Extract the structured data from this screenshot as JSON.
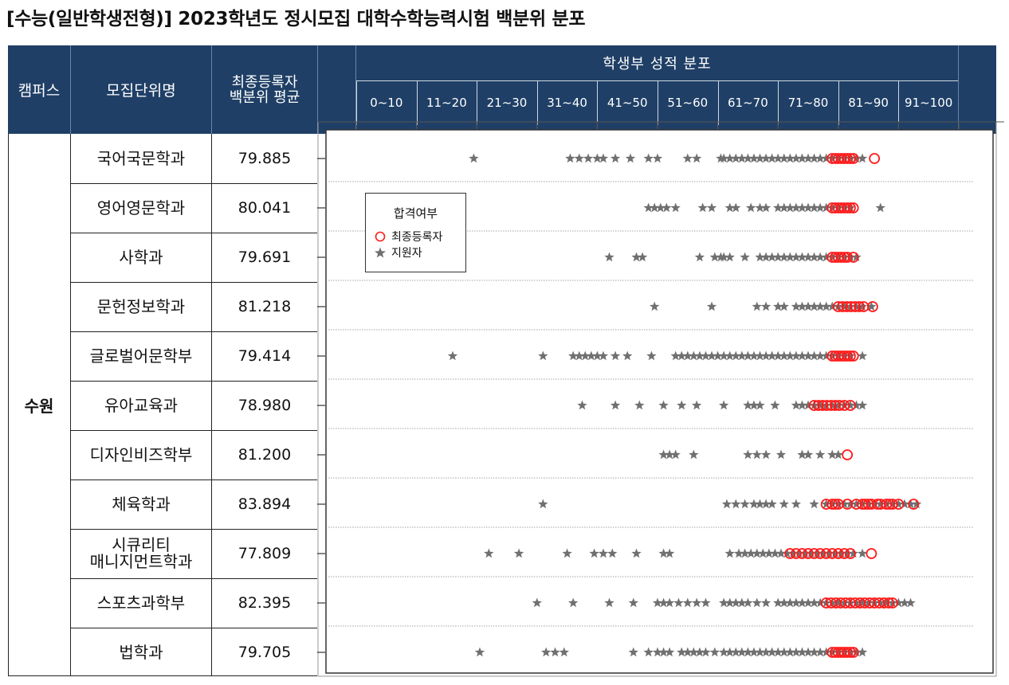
{
  "page_title": "[수능(일반학생전형)]  2023학년도  정시모집  대학수학능력시험  백분위  분포",
  "header": {
    "campus": "캠퍼스",
    "unit": "모집단위명",
    "avg_line1": "최종등록자",
    "avg_line2": "백분위  평균",
    "dist": "학생부 성적 분포"
  },
  "campus_name": "수원",
  "legend": {
    "title": "합격여부",
    "registered": "최종등록자",
    "applicant": "지원자"
  },
  "colors": {
    "header_bg": "#1f3f66",
    "applicant": "#707070",
    "registered": "#ff1a1a"
  },
  "chart_data": {
    "type": "scatter",
    "x_bins": [
      "0~10",
      "11~20",
      "21~30",
      "31~40",
      "41~50",
      "51~60",
      "61~70",
      "71~80",
      "81~90",
      "91~100"
    ],
    "xlim": [
      0,
      100
    ],
    "categories": [
      "국어국문학과",
      "영어영문학과",
      "사학과",
      "문헌정보학과",
      "글로벌어문학부",
      "유아교육과",
      "디자인비즈학부",
      "체육학과",
      "시큐리티 매니지먼트학과",
      "스포츠과학부",
      "법학과"
    ],
    "averages": [
      "79.885",
      "80.041",
      "79.691",
      "81.218",
      "79.414",
      "78.980",
      "81.200",
      "83.894",
      "77.809",
      "82.395",
      "79.705"
    ],
    "series": [
      {
        "name": "지원자",
        "marker": "star",
        "values": [
          [
            19.5,
            35.5,
            37,
            38.5,
            40,
            41,
            43,
            45.5,
            48.5,
            50,
            55,
            56.5,
            60.5,
            61,
            62,
            63,
            64,
            65,
            66,
            67,
            68,
            69,
            70,
            71,
            72,
            73,
            74,
            75,
            76,
            77,
            78,
            79,
            80,
            81,
            82,
            83,
            84
          ],
          [
            48.5,
            49.5,
            50.5,
            51.5,
            53,
            57.5,
            59,
            62,
            63,
            65.5,
            67,
            68,
            70,
            71,
            72,
            73,
            74,
            75,
            76,
            77,
            78,
            79,
            80,
            81,
            82,
            87
          ],
          [
            42,
            46.5,
            47.5,
            57,
            59.5,
            60.5,
            61,
            62,
            64.5,
            67,
            68,
            69,
            70,
            71,
            72,
            73,
            74,
            75,
            76,
            77,
            78,
            79,
            80,
            81,
            82,
            83
          ],
          [
            49.5,
            59,
            66.5,
            68,
            70,
            71,
            73,
            74,
            75,
            76,
            77,
            78,
            79,
            80,
            81,
            82,
            83,
            84,
            85.5
          ],
          [
            16,
            31,
            36,
            37,
            38,
            39,
            40,
            41,
            43,
            45,
            49,
            53,
            54,
            55,
            56,
            57,
            58,
            59,
            60,
            61,
            62,
            63,
            64,
            65,
            66,
            67,
            68,
            69,
            70,
            71,
            72,
            73,
            74,
            75,
            76,
            77,
            78,
            79,
            80,
            81,
            82,
            84
          ],
          [
            37.5,
            43,
            47,
            51,
            54,
            56.5,
            61,
            65,
            66,
            67,
            69.5,
            73,
            74,
            75,
            76,
            77,
            78,
            79,
            80,
            81,
            82,
            83,
            84
          ],
          [
            51,
            52,
            53,
            56,
            65,
            66.5,
            68,
            70.5,
            74,
            75,
            77,
            79,
            80
          ],
          [
            31,
            61.5,
            63,
            64.5,
            66,
            67,
            68,
            69,
            71,
            73,
            76,
            78,
            79,
            80,
            81,
            82,
            83,
            84,
            85,
            86,
            87,
            88,
            89,
            90,
            91,
            92,
            93
          ],
          [
            22,
            27,
            35,
            39.5,
            41,
            42.5,
            46.5,
            51,
            52,
            62,
            63.5,
            64.5,
            65.5,
            66.5,
            67.5,
            68.5,
            69.5,
            70.5,
            71.5,
            72.5,
            73.5,
            74.5,
            75.5,
            76.5,
            77.5,
            78.5,
            79.5,
            80.5,
            81.5,
            82.5,
            84
          ],
          [
            30,
            36,
            42,
            46,
            50,
            51,
            52,
            53.5,
            55,
            56.5,
            58,
            61,
            62,
            63,
            64,
            65,
            66.5,
            68,
            70,
            71,
            72,
            73,
            74,
            75,
            76,
            77,
            78,
            79,
            80,
            81,
            82,
            83,
            84,
            85,
            86,
            87,
            88,
            89,
            90,
            91,
            92
          ],
          [
            20.5,
            31.5,
            33,
            34.5,
            46,
            48.5,
            50,
            51,
            52,
            54,
            55,
            56,
            57,
            58,
            59.5,
            61,
            62,
            63,
            64,
            65,
            66,
            67,
            68,
            69,
            70,
            71,
            72,
            73,
            74,
            75,
            76,
            77,
            78,
            79,
            80,
            81,
            82,
            83,
            84
          ]
        ]
      },
      {
        "name": "최종등록자",
        "marker": "circle",
        "values": [
          [
            79,
            79.5,
            80,
            80.5,
            81,
            81.5,
            82,
            82.5,
            86
          ],
          [
            79,
            79.5,
            80,
            80.5,
            81,
            81.5,
            82,
            82.5
          ],
          [
            79,
            79.5,
            80,
            80.5,
            81,
            81.5,
            82.5
          ],
          [
            80,
            80.7,
            81.4,
            82.1,
            82.8,
            83.5,
            84.2,
            85.7
          ],
          [
            79,
            79.5,
            80,
            80.5,
            81,
            81.5,
            82,
            82.5
          ],
          [
            76,
            76.7,
            77.4,
            78.1,
            78.8,
            79.5,
            80.2,
            81,
            82
          ],
          [
            81.5
          ],
          [
            78,
            79,
            79.5,
            80,
            81.5,
            83,
            84,
            84.5,
            85,
            85.5,
            86.5,
            87,
            88,
            88.5,
            89,
            90,
            92.5
          ],
          [
            72,
            73,
            74,
            75,
            76,
            77,
            78,
            79,
            80,
            81,
            82,
            85.5
          ],
          [
            78,
            78.8,
            79.6,
            80.4,
            81.2,
            82,
            82.8,
            83.6,
            84.4,
            85.2,
            86,
            86.8,
            87.6,
            88.4,
            89
          ],
          [
            79,
            79.5,
            80,
            80.5,
            81,
            81.5,
            82,
            82.5
          ]
        ]
      }
    ]
  }
}
